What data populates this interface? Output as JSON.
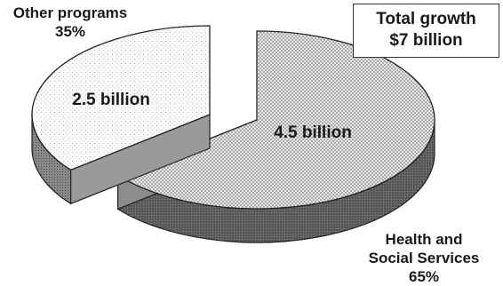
{
  "chart_data": {
    "type": "pie",
    "style": "3d",
    "slices": [
      {
        "name": "Health and Social Services",
        "value": 4.5,
        "value_label": "4.5 billion",
        "percent_label": "65%",
        "fill": "stipple-gray"
      },
      {
        "name": "Other programs",
        "value": 2.5,
        "value_label": "2.5 billion",
        "percent_label": "35%",
        "fill": "light-stipple",
        "exploded": true
      }
    ],
    "legend_box": {
      "line1": "Total growth",
      "line2": "$7 billion"
    }
  },
  "labels": {
    "other_name": "Other programs",
    "other_pct": "35%",
    "health_line1": "Health and",
    "health_line2": "Social Services",
    "health_pct": "65%"
  }
}
